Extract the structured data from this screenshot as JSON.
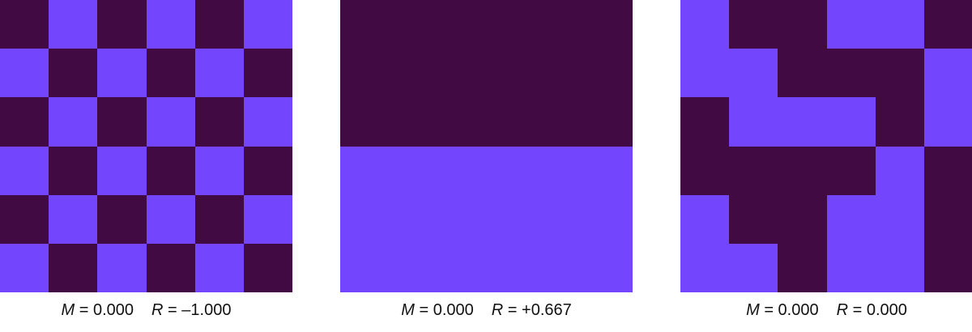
{
  "colors": {
    "dark": "#420a42",
    "light": "#7345fd"
  },
  "panels": [
    {
      "grid": [
        [
          0,
          1,
          0,
          1,
          0,
          1
        ],
        [
          1,
          0,
          1,
          0,
          1,
          0
        ],
        [
          0,
          1,
          0,
          1,
          0,
          1
        ],
        [
          1,
          0,
          1,
          0,
          1,
          0
        ],
        [
          0,
          1,
          0,
          1,
          0,
          1
        ],
        [
          1,
          0,
          1,
          0,
          1,
          0
        ]
      ],
      "m_symbol": "M",
      "m_value": " = 0.000",
      "r_symbol": "R",
      "r_value": " = –1.000"
    },
    {
      "grid": [
        [
          0,
          0,
          0,
          0,
          0,
          0
        ],
        [
          0,
          0,
          0,
          0,
          0,
          0
        ],
        [
          0,
          0,
          0,
          0,
          0,
          0
        ],
        [
          1,
          1,
          1,
          1,
          1,
          1
        ],
        [
          1,
          1,
          1,
          1,
          1,
          1
        ],
        [
          1,
          1,
          1,
          1,
          1,
          1
        ]
      ],
      "m_symbol": "M",
      "m_value": " = 0.000",
      "r_symbol": "R",
      "r_value": " = +0.667"
    },
    {
      "grid": [
        [
          1,
          0,
          0,
          1,
          1,
          0
        ],
        [
          1,
          1,
          0,
          0,
          0,
          1
        ],
        [
          0,
          1,
          1,
          1,
          0,
          1
        ],
        [
          0,
          0,
          0,
          0,
          1,
          0
        ],
        [
          1,
          0,
          0,
          1,
          1,
          0
        ],
        [
          1,
          1,
          0,
          1,
          1,
          0
        ]
      ],
      "m_symbol": "M",
      "m_value": " = 0.000",
      "r_symbol": "R",
      "r_value": " = 0.000"
    }
  ]
}
